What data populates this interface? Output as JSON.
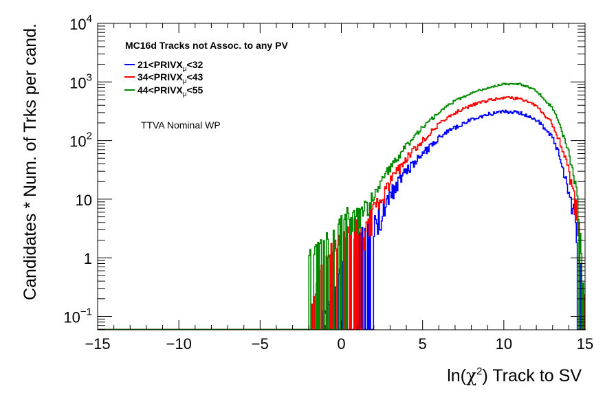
{
  "chart_data": {
    "type": "line",
    "xlabel": "ln(χ²) Track to SV",
    "xlabel_parts": {
      "pre": "ln(",
      "chi": "χ",
      "sup": "2",
      "post": ") Track to SV"
    },
    "ylabel": "Candidates * Num. of Trks per cand.",
    "xlim": [
      -15,
      15
    ],
    "ylim": [
      0.05,
      10000
    ],
    "yscale": "log",
    "x_ticks": [
      -15,
      -10,
      -5,
      0,
      5,
      10,
      15
    ],
    "x_tick_labels": [
      "−15",
      "−10",
      "−5",
      "0",
      "5",
      "10",
      "15"
    ],
    "y_ticks": [
      {
        "value": 0.1,
        "base": "10",
        "exp": "−1"
      },
      {
        "value": 1,
        "base": "1",
        "exp": ""
      },
      {
        "value": 10,
        "base": "10",
        "exp": ""
      },
      {
        "value": 100,
        "base": "10",
        "exp": "2"
      },
      {
        "value": 1000,
        "base": "10",
        "exp": "3"
      },
      {
        "value": 10000,
        "base": "10",
        "exp": "4"
      }
    ],
    "legend": {
      "title": "MC16d Tracks not Assoc. to any PV",
      "placement": "top-left",
      "entries": [
        {
          "pre": "21<PRIVX",
          "sub": "μ",
          "post": "<32"
        },
        {
          "pre": "34<PRIVX",
          "sub": "μ",
          "post": "<43"
        },
        {
          "pre": "44<PRIVX",
          "sub": "μ",
          "post": "<55"
        }
      ]
    },
    "annotation": "TTVA Nominal WP",
    "x": [
      -2,
      -1,
      0,
      1,
      2,
      3,
      4,
      5,
      6,
      7,
      8,
      9,
      10,
      11,
      12,
      13,
      13.5,
      14,
      14.5,
      15
    ],
    "series": [
      {
        "name": "21<PRIVXμ<32",
        "color": "#0000ff",
        "values": [
          0.05,
          0.05,
          0.3,
          1,
          3,
          12,
          30,
          60,
          110,
          170,
          230,
          280,
          310,
          300,
          230,
          110,
          50,
          15,
          3,
          0.05
        ]
      },
      {
        "name": "34<PRIVXμ<43",
        "color": "#ff0000",
        "values": [
          0.05,
          0.5,
          1,
          2,
          6,
          20,
          50,
          100,
          190,
          300,
          400,
          480,
          540,
          520,
          400,
          190,
          90,
          30,
          6,
          0.05
        ]
      },
      {
        "name": "44<PRIVXμ<55",
        "color": "#008800",
        "values": [
          0.5,
          1,
          2,
          5,
          10,
          35,
          80,
          170,
          300,
          480,
          640,
          800,
          930,
          920,
          720,
          360,
          170,
          60,
          12,
          0.05
        ]
      }
    ]
  }
}
